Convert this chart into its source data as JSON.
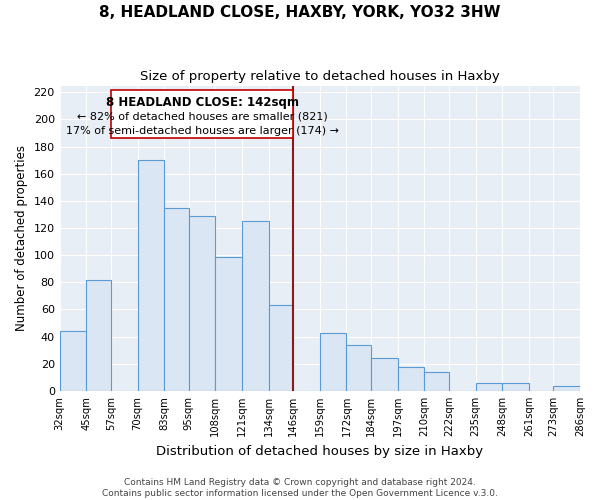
{
  "title": "8, HEADLAND CLOSE, HAXBY, YORK, YO32 3HW",
  "subtitle": "Size of property relative to detached houses in Haxby",
  "xlabel": "Distribution of detached houses by size in Haxby",
  "ylabel": "Number of detached properties",
  "categories": [
    "32sqm",
    "45sqm",
    "57sqm",
    "70sqm",
    "83sqm",
    "95sqm",
    "108sqm",
    "121sqm",
    "134sqm",
    "146sqm",
    "159sqm",
    "172sqm",
    "184sqm",
    "197sqm",
    "210sqm",
    "222sqm",
    "235sqm",
    "248sqm",
    "261sqm",
    "273sqm",
    "286sqm"
  ],
  "edges": [
    32,
    45,
    57,
    70,
    83,
    95,
    108,
    121,
    134,
    146,
    159,
    172,
    184,
    197,
    210,
    222,
    235,
    248,
    261,
    273,
    286
  ],
  "values": [
    44,
    82,
    0,
    170,
    135,
    129,
    99,
    125,
    63,
    0,
    43,
    34,
    24,
    18,
    14,
    0,
    6,
    6,
    0,
    4,
    0
  ],
  "bar_color": "#dae6f3",
  "bar_edge_color": "#5b9bd5",
  "property_line_x": 146,
  "property_line_label": "8 HEADLAND CLOSE: 142sqm",
  "annotation_line1": "← 82% of detached houses are smaller (821)",
  "annotation_line2": "17% of semi-detached houses are larger (174) →",
  "property_line_color": "#8b1a1a",
  "box_edge_color": "#c00000",
  "ylim": [
    0,
    225
  ],
  "yticks": [
    0,
    20,
    40,
    60,
    80,
    100,
    120,
    140,
    160,
    180,
    200,
    220
  ],
  "footer1": "Contains HM Land Registry data © Crown copyright and database right 2024.",
  "footer2": "Contains public sector information licensed under the Open Government Licence v.3.0.",
  "title_fontsize": 11,
  "subtitle_fontsize": 9.5,
  "xlabel_fontsize": 9.5,
  "ylabel_fontsize": 8.5,
  "annotation_fontsize": 8.5,
  "footer_fontsize": 6.5,
  "bg_color": "#e8eef5",
  "grid_color": "#ffffff"
}
